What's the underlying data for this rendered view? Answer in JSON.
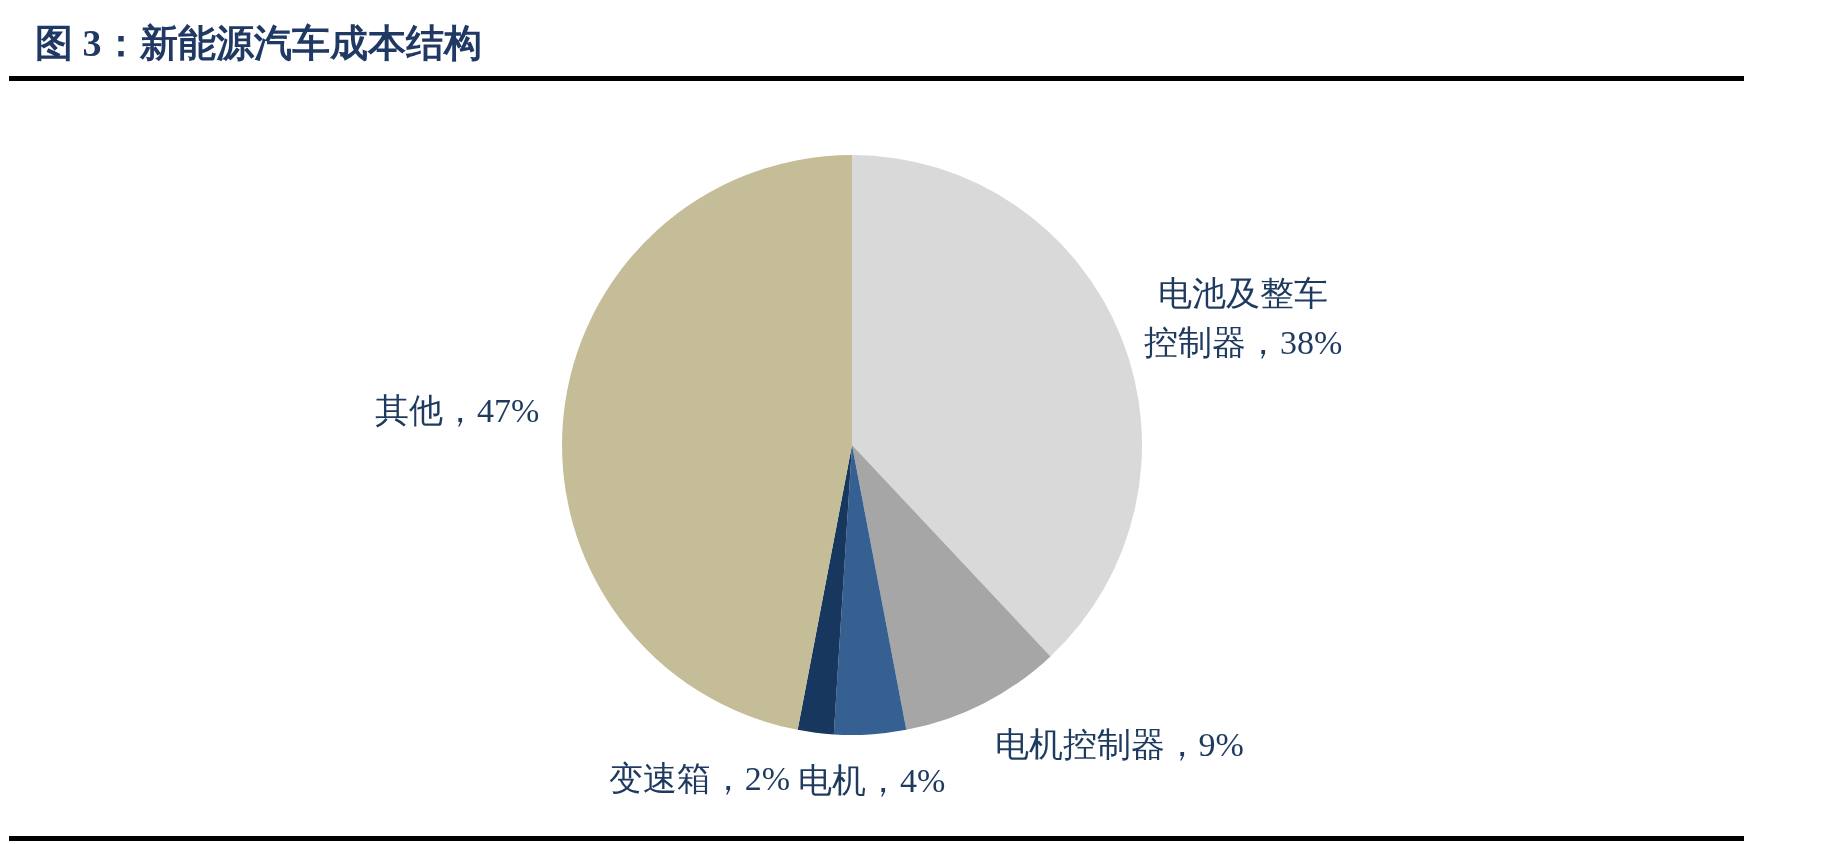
{
  "chart_data": {
    "type": "pie",
    "title": "图 3：新能源汽车成本结构",
    "categories": [
      "电池及整车控制器",
      "电机控制器",
      "电机",
      "变速箱",
      "其他"
    ],
    "values": [
      38,
      9,
      4,
      2,
      47
    ],
    "colors": [
      "#d9d9d9",
      "#a6a6a6",
      "#376092",
      "#17375e",
      "#c4bd97"
    ],
    "value_labels": [
      "38%",
      "9%",
      "4%",
      "2%",
      "47%"
    ]
  }
}
